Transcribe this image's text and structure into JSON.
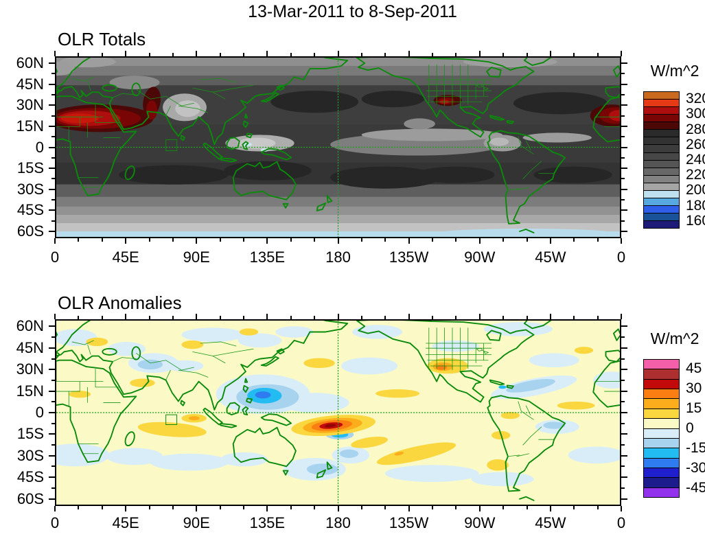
{
  "header": {
    "title": "13-Mar-2011 to 8-Sep-2011"
  },
  "panels": [
    {
      "title": "OLR Totals",
      "colorbar": {
        "units": "W/m^2",
        "labels": [
          "320",
          "300",
          "280",
          "260",
          "240",
          "220",
          "200",
          "180",
          "160"
        ],
        "colors": [
          "#C96A1E",
          "#E53A15",
          "#AE0E0E",
          "#7A0505",
          "#4C0707",
          "#2A2A2A",
          "#323232",
          "#3C3C3C",
          "#474747",
          "#555555",
          "#686868",
          "#828282",
          "#A5A5A5",
          "#BFE0EE",
          "#58A8E0",
          "#2F5FE8",
          "#1A5299",
          "#1C1C78"
        ]
      },
      "y_ticks": [
        {
          "label": "60N",
          "value": 60
        },
        {
          "label": "45N",
          "value": 45
        },
        {
          "label": "30N",
          "value": 30
        },
        {
          "label": "15N",
          "value": 15
        },
        {
          "label": "0",
          "value": 0
        },
        {
          "label": "15S",
          "value": -15
        },
        {
          "label": "30S",
          "value": -30
        },
        {
          "label": "45S",
          "value": -45
        },
        {
          "label": "60S",
          "value": -60
        }
      ],
      "x_ticks": [
        {
          "label": "0",
          "value": 0
        },
        {
          "label": "45E",
          "value": 45
        },
        {
          "label": "90E",
          "value": 90
        },
        {
          "label": "135E",
          "value": 135
        },
        {
          "label": "180",
          "value": 180
        },
        {
          "label": "135W",
          "value": 225
        },
        {
          "label": "90W",
          "value": 270
        },
        {
          "label": "45W",
          "value": 315
        },
        {
          "label": "0",
          "value": 360
        }
      ]
    },
    {
      "title": "OLR Anomalies",
      "colorbar": {
        "units": "W/m^2",
        "labels": [
          "45",
          "30",
          "15",
          "0",
          "-15",
          "-30",
          "-45"
        ],
        "colors": [
          "#F45FA9",
          "#AE2F2F",
          "#C20A0A",
          "#FB7E12",
          "#FBAD1B",
          "#FAD73F",
          "#FBFAC6",
          "#D8EDF8",
          "#A8D3EF",
          "#22BCF2",
          "#2F7CF0",
          "#1F1FCE",
          "#1C1C8C",
          "#9232EC"
        ]
      },
      "y_ticks": [
        {
          "label": "60N",
          "value": 60
        },
        {
          "label": "45N",
          "value": 45
        },
        {
          "label": "30N",
          "value": 30
        },
        {
          "label": "15N",
          "value": 15
        },
        {
          "label": "0",
          "value": 0
        },
        {
          "label": "15S",
          "value": -15
        },
        {
          "label": "30S",
          "value": -30
        },
        {
          "label": "45S",
          "value": -45
        },
        {
          "label": "60S",
          "value": -60
        }
      ],
      "x_ticks": [
        {
          "label": "0",
          "value": 0
        },
        {
          "label": "45E",
          "value": 45
        },
        {
          "label": "90E",
          "value": 90
        },
        {
          "label": "135E",
          "value": 135
        },
        {
          "label": "180",
          "value": 180
        },
        {
          "label": "135W",
          "value": 225
        },
        {
          "label": "90W",
          "value": 270
        },
        {
          "label": "45W",
          "value": 315
        },
        {
          "label": "0",
          "value": 360
        }
      ]
    }
  ],
  "chart_data": [
    {
      "type": "heatmap",
      "subtype": "filled-contour-world-map",
      "title": "OLR Totals",
      "units": "W/m^2",
      "date_range": "13-Mar-2011 to 8-Sep-2011",
      "x_tick_labels": [
        "0",
        "45E",
        "90E",
        "135E",
        "180",
        "135W",
        "90W",
        "45W",
        "0"
      ],
      "y_tick_labels": [
        "60N",
        "45N",
        "30N",
        "15N",
        "0",
        "15S",
        "30S",
        "45S",
        "60S"
      ],
      "lon_range_deg": [
        0,
        360
      ],
      "lat_range_deg": [
        -65,
        65
      ],
      "colorbar_tick_values": [
        320,
        300,
        280,
        260,
        240,
        220,
        200,
        180,
        160
      ],
      "contour_interval": 10,
      "value_range": [
        150,
        330
      ],
      "palette_top_to_bottom": [
        "#C96A1E",
        "#E53A15",
        "#AE0E0E",
        "#7A0505",
        "#4C0707",
        "#2A2A2A",
        "#323232",
        "#3C3C3C",
        "#474747",
        "#555555",
        "#686868",
        "#828282",
        "#A5A5A5",
        "#BFE0EE",
        "#58A8E0",
        "#2F5FE8",
        "#1A5299",
        "#1C1C78"
      ],
      "reference_lines": [
        "dashed equator line",
        "dashed 180 meridian"
      ],
      "notable_features": [
        "Maximum >320 W/m^2 (dark red) over the Sahara and Arabian Peninsula",
        "Smaller >280 W/m^2 maxima over southwestern North America and far-eastern map edge (west Africa wrap)",
        "Broad dark 240-280 W/m^2 bands across the subtropics of both hemispheres",
        "Lighter 200-220 W/m^2 values over India/Tibet, the Maritime Continent and eastern Pacific ITCZ",
        "Values below 200 W/m^2 (pale blue) along the southern edge near 60S"
      ]
    },
    {
      "type": "heatmap",
      "subtype": "filled-contour-world-map",
      "title": "OLR Anomalies",
      "units": "W/m^2",
      "date_range": "13-Mar-2011 to 8-Sep-2011",
      "x_tick_labels": [
        "0",
        "45E",
        "90E",
        "135E",
        "180",
        "135W",
        "90W",
        "45W",
        "0"
      ],
      "y_tick_labels": [
        "60N",
        "45N",
        "30N",
        "15N",
        "0",
        "15S",
        "30S",
        "45S",
        "60S"
      ],
      "lon_range_deg": [
        0,
        360
      ],
      "lat_range_deg": [
        -65,
        65
      ],
      "colorbar_tick_values": [
        45,
        30,
        15,
        0,
        -15,
        -30,
        -45
      ],
      "contour_interval": 7.5,
      "value_range": [
        -52.5,
        52.5
      ],
      "palette_top_to_bottom": [
        "#F45FA9",
        "#AE2F2F",
        "#C20A0A",
        "#FB7E12",
        "#FBAD1B",
        "#FAD73F",
        "#FBFAC6",
        "#D8EDF8",
        "#A8D3EF",
        "#22BCF2",
        "#2F7CF0",
        "#1F1FCE",
        "#1C1C8C",
        "#9232EC"
      ],
      "reference_lines": [
        "dashed equator line",
        "dashed 180 meridian"
      ],
      "notable_features": [
        "Strong positive anomaly (>30 W/m^2, red core) centered near 180 longitude at about 8S",
        "Negative anomaly (< -15 W/m^2, cyan) over the western Pacific near 125E-145E north of the equator",
        "Positive anomaly (orange core) over the south-central United States",
        "Elongated positive bands over the south Indian Ocean and the southeast Pacific",
        "Scattered weak negative (pale blue) anomalies over subtropical oceans; background near zero (pale yellow)"
      ]
    }
  ]
}
